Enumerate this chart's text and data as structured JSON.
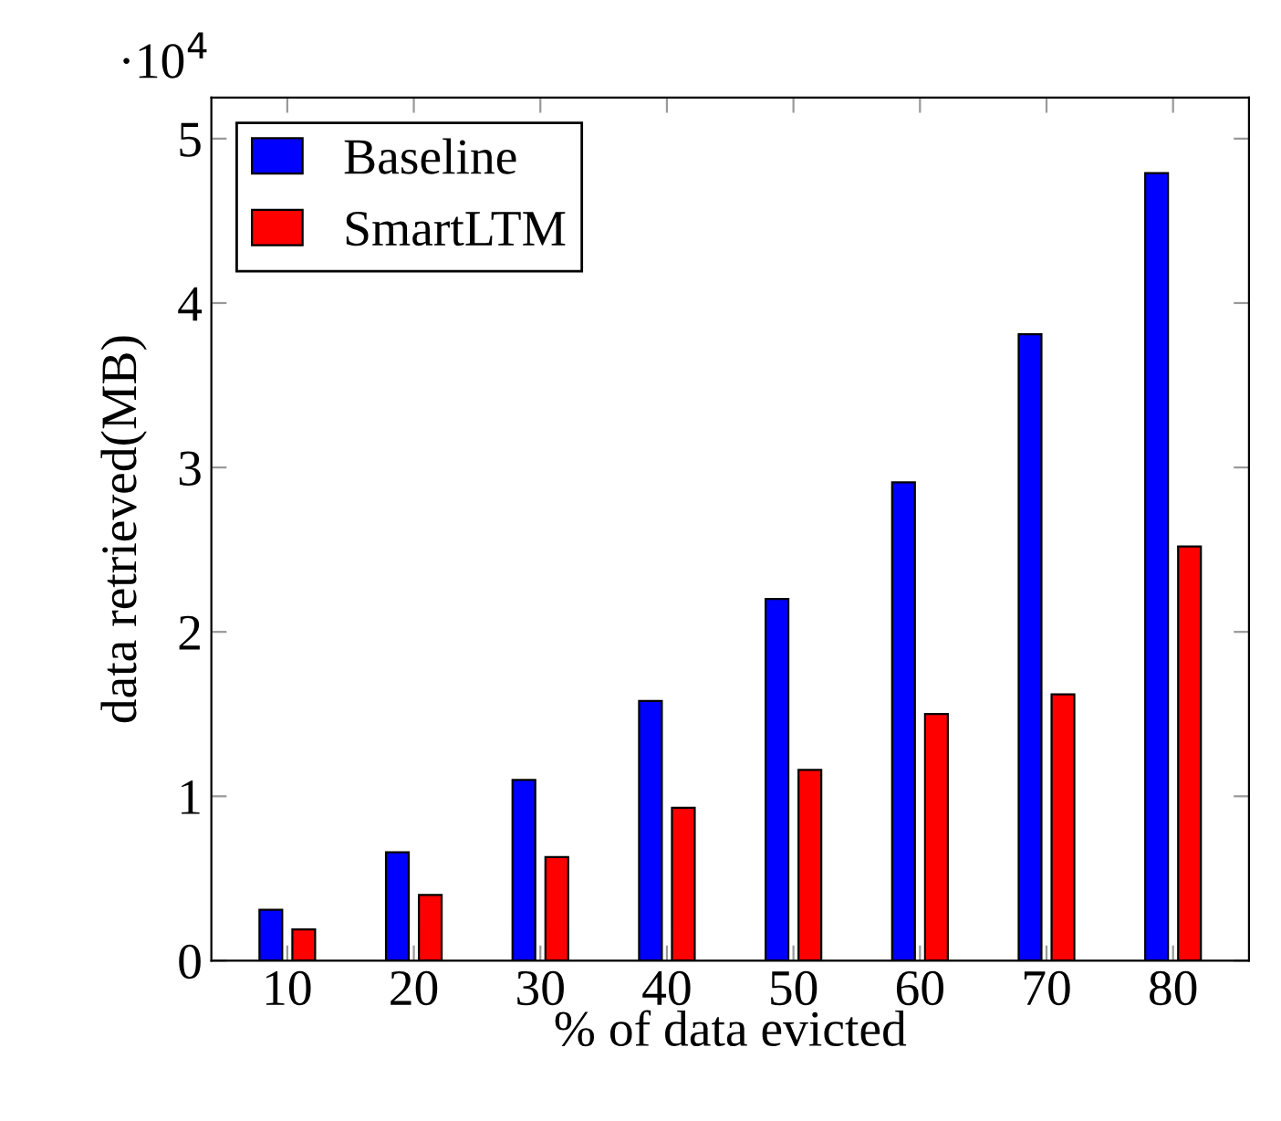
{
  "chart_data": {
    "type": "bar",
    "xlabel": "% of data evicted",
    "ylabel": "data retrieved(MB)",
    "categories": [
      "10",
      "20",
      "30",
      "40",
      "50",
      "60",
      "70",
      "80"
    ],
    "series": [
      {
        "name": "Baseline",
        "color": "#0000ff",
        "values": [
          0.31,
          0.66,
          1.1,
          1.58,
          2.2,
          2.91,
          3.81,
          4.79
        ]
      },
      {
        "name": "SmartLTM",
        "color": "#ff0000",
        "values": [
          0.19,
          0.4,
          0.63,
          0.93,
          1.16,
          1.5,
          1.62,
          2.52
        ]
      }
    ],
    "ylim": [
      0,
      5.25
    ],
    "yticks": [
      0,
      1,
      2,
      3,
      4,
      5
    ],
    "annotations": [
      "·10$^{4}$"
    ],
    "legend": "top left",
    "grid": false
  }
}
